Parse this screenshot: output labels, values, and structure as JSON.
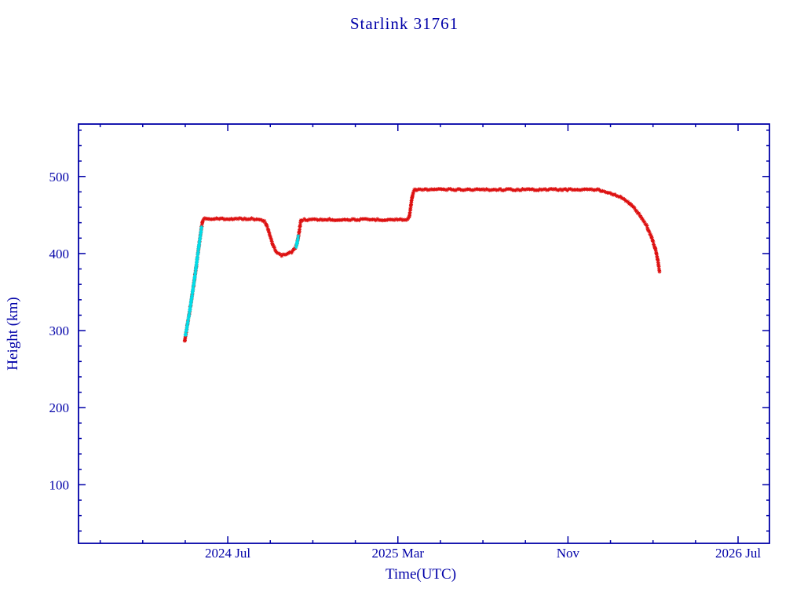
{
  "colors": {
    "axis": "#0000a8",
    "text": "#0000a8",
    "red_series": "#dd1010",
    "cyan_series": "#00dde8",
    "background": "#ffffff"
  },
  "chart_data": {
    "type": "scatter",
    "title": "Starlink 31761",
    "xlabel": "Time(UTC)",
    "ylabel": "Height (km)",
    "legend": "none",
    "grid": false,
    "x_axis": {
      "range": [
        2023.915,
        2026.623
      ],
      "ticks": [
        {
          "value": 2024.5,
          "label": "2024 Jul"
        },
        {
          "value": 2025.1667,
          "label": "2025 Mar"
        },
        {
          "value": 2025.8333,
          "label": "Nov"
        },
        {
          "value": 2026.5,
          "label": "2026 Jul"
        }
      ],
      "minor_step": 0.1666667
    },
    "y_axis": {
      "range": [
        24,
        568
      ],
      "ticks": [
        {
          "value": 100,
          "label": "100"
        },
        {
          "value": 200,
          "label": "200"
        },
        {
          "value": 300,
          "label": "300"
        },
        {
          "value": 400,
          "label": "400"
        },
        {
          "value": 500,
          "label": "500"
        }
      ],
      "minor_step": 20
    },
    "series": [
      {
        "name": "height-red",
        "color": "#dd1010",
        "marker": "asterisk",
        "jitter": 1.1,
        "segments": [
          [
            [
              2024.331,
              286
            ],
            [
              2024.336,
              296
            ],
            [
              2024.342,
              308
            ],
            [
              2024.349,
              322
            ],
            [
              2024.356,
              336
            ],
            [
              2024.363,
              352
            ],
            [
              2024.371,
              370
            ],
            [
              2024.379,
              390
            ],
            [
              2024.387,
              410
            ],
            [
              2024.394,
              427
            ],
            [
              2024.399,
              438
            ],
            [
              2024.403,
              444
            ],
            [
              2024.41,
              445
            ],
            [
              2024.5,
              445
            ],
            [
              2024.6,
              445
            ],
            [
              2024.635,
              444
            ],
            [
              2024.648,
              440
            ],
            [
              2024.659,
              431
            ],
            [
              2024.669,
              419
            ],
            [
              2024.68,
              408
            ],
            [
              2024.692,
              401
            ],
            [
              2024.706,
              398
            ],
            [
              2024.722,
              398
            ],
            [
              2024.737,
              400
            ],
            [
              2024.75,
              402
            ],
            [
              2024.762,
              406
            ],
            [
              2024.771,
              412
            ],
            [
              2024.778,
              424
            ],
            [
              2024.783,
              436
            ],
            [
              2024.787,
              443
            ],
            [
              2024.8,
              444
            ],
            [
              2024.95,
              444
            ],
            [
              2025.1,
              444
            ],
            [
              2025.205,
              444
            ],
            [
              2025.211,
              448
            ],
            [
              2025.216,
              458
            ],
            [
              2025.221,
              470
            ],
            [
              2025.227,
              479
            ],
            [
              2025.233,
              483
            ],
            [
              2025.25,
              483
            ],
            [
              2025.5,
              483
            ],
            [
              2025.75,
              483
            ],
            [
              2025.945,
              483
            ],
            [
              2025.975,
              481
            ],
            [
              2026.005,
              478
            ],
            [
              2026.035,
              474
            ],
            [
              2026.065,
              468
            ],
            [
              2026.09,
              460
            ],
            [
              2026.115,
              450
            ],
            [
              2026.14,
              437
            ],
            [
              2026.16,
              422
            ],
            [
              2026.175,
              407
            ],
            [
              2026.186,
              391
            ],
            [
              2026.193,
              374
            ]
          ]
        ]
      },
      {
        "name": "height-cyan",
        "color": "#00dde8",
        "marker": "asterisk",
        "jitter": 0.8,
        "segments": [
          [
            [
              2024.334,
              294
            ],
            [
              2024.341,
              306
            ],
            [
              2024.348,
              320
            ],
            [
              2024.355,
              334
            ],
            [
              2024.362,
              350
            ],
            [
              2024.37,
              368
            ],
            [
              2024.378,
              388
            ],
            [
              2024.386,
              408
            ],
            [
              2024.393,
              424
            ],
            [
              2024.398,
              436
            ]
          ],
          [
            [
              2024.768,
              409
            ],
            [
              2024.773,
              416
            ],
            [
              2024.777,
              424
            ]
          ]
        ]
      }
    ]
  }
}
